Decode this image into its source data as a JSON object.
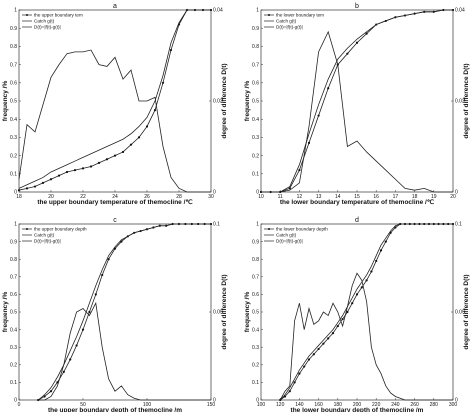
{
  "chart_data": [
    {
      "panel": "a",
      "type": "line",
      "xlabel": "the upper boundary temperature of themocline /℃",
      "ylabel": "frequency /%",
      "y2label": "degree of difference D(t)",
      "xlim": [
        18,
        30
      ],
      "ylim": [
        0,
        1
      ],
      "y2lim": [
        0,
        0.04
      ],
      "xticks": [
        18,
        20,
        22,
        24,
        26,
        28,
        30
      ],
      "yticks": [
        0,
        0.1,
        0.2,
        0.3,
        0.4,
        0.5,
        0.6,
        0.7,
        0.8,
        0.9,
        1
      ],
      "y2ticks": [
        {
          "v": 0,
          "label": "0"
        },
        {
          "v": 0.02,
          "label": "0.02"
        },
        {
          "v": 0.04,
          "label": "0.04"
        }
      ],
      "legend": [
        "the upper boundary tem",
        "Catch g(t)",
        "D(t)=|f(t)-g(t)|"
      ],
      "series": [
        {
          "name": "the upper boundary tem",
          "marker": "dot",
          "x": [
            18,
            18.5,
            19,
            19.5,
            20,
            20.5,
            21,
            21.5,
            22,
            22.5,
            23,
            23.5,
            24,
            24.5,
            25,
            25.5,
            26,
            26.5,
            27,
            27.5,
            28,
            28.5,
            29,
            29.5,
            30
          ],
          "y": [
            0.01,
            0.02,
            0.03,
            0.05,
            0.07,
            0.09,
            0.11,
            0.12,
            0.13,
            0.14,
            0.16,
            0.18,
            0.2,
            0.22,
            0.26,
            0.3,
            0.36,
            0.45,
            0.6,
            0.78,
            0.92,
            1,
            1,
            1,
            1
          ]
        },
        {
          "name": "Catch g(t)",
          "x": [
            18,
            18.5,
            19,
            19.5,
            20,
            20.5,
            21,
            21.5,
            22,
            22.5,
            23,
            23.5,
            24,
            24.5,
            25,
            25.5,
            26,
            26.5,
            27,
            27.5,
            28,
            28.5,
            29,
            29.5,
            30
          ],
          "y": [
            0.02,
            0.04,
            0.06,
            0.08,
            0.11,
            0.13,
            0.15,
            0.17,
            0.19,
            0.21,
            0.23,
            0.25,
            0.27,
            0.29,
            0.32,
            0.36,
            0.41,
            0.5,
            0.64,
            0.82,
            0.93,
            1,
            1,
            1,
            1
          ]
        },
        {
          "name": "D(t)=|f(t)-g(t)|",
          "x": [
            18,
            18.5,
            19,
            19.5,
            20,
            20.5,
            21,
            21.5,
            22,
            22.5,
            23,
            23.5,
            24,
            24.5,
            25,
            25.5,
            26,
            26.5,
            27,
            27.5,
            28,
            28.5,
            29,
            29.5,
            30
          ],
          "y": [
            0.07,
            0.37,
            0.33,
            0.48,
            0.63,
            0.7,
            0.76,
            0.77,
            0.77,
            0.78,
            0.7,
            0.69,
            0.74,
            0.62,
            0.67,
            0.5,
            0.5,
            0.52,
            0.25,
            0.08,
            0.02,
            0,
            0,
            0,
            0
          ]
        }
      ]
    },
    {
      "panel": "b",
      "type": "line",
      "xlabel": "the lower boundary temperature of themocline /℃",
      "ylabel": "frequency /%",
      "y2label": "degree of difference D(t)",
      "xlim": [
        10,
        20
      ],
      "ylim": [
        0,
        1
      ],
      "y2lim": [
        0,
        0.04
      ],
      "xticks": [
        10,
        11,
        12,
        13,
        14,
        15,
        16,
        17,
        18,
        19,
        20
      ],
      "yticks": [
        0,
        0.1,
        0.2,
        0.3,
        0.4,
        0.5,
        0.6,
        0.7,
        0.8,
        0.9,
        1
      ],
      "y2ticks": [
        {
          "v": 0,
          "label": "0"
        },
        {
          "v": 0.02,
          "label": "0.02"
        },
        {
          "v": 0.04,
          "label": "0.04"
        }
      ],
      "legend": [
        "the lower boundary tem",
        "Catch g(t)",
        "D(t)=|f(t)-g(t)|"
      ],
      "series": [
        {
          "name": "the lower boundary tem",
          "marker": "dot",
          "x": [
            10,
            10.5,
            11,
            11.5,
            12,
            12.5,
            13,
            13.5,
            14,
            14.5,
            15,
            15.5,
            16,
            16.5,
            17,
            17.5,
            18,
            18.5,
            19,
            19.5,
            20
          ],
          "y": [
            0,
            0,
            0,
            0.02,
            0.12,
            0.27,
            0.42,
            0.57,
            0.7,
            0.76,
            0.82,
            0.87,
            0.92,
            0.94,
            0.96,
            0.97,
            0.98,
            0.99,
            0.99,
            1,
            1
          ]
        },
        {
          "name": "Catch g(t)",
          "x": [
            10,
            10.5,
            11,
            11.5,
            12,
            12.5,
            13,
            13.5,
            14,
            14.5,
            15,
            15.5,
            16,
            16.5,
            17,
            17.5,
            18,
            18.5,
            19,
            19.5,
            20
          ],
          "y": [
            0,
            0,
            0,
            0.03,
            0.15,
            0.32,
            0.48,
            0.62,
            0.73,
            0.79,
            0.84,
            0.88,
            0.92,
            0.94,
            0.96,
            0.97,
            0.98,
            0.99,
            0.99,
            1,
            1
          ]
        },
        {
          "name": "D(t)=|f(t)-g(t)|",
          "x": [
            10,
            10.5,
            11,
            11.5,
            12,
            12.5,
            13,
            13.5,
            14,
            14.5,
            15,
            15.5,
            16,
            16.5,
            17,
            17.5,
            18,
            18.5,
            19,
            19.5,
            20
          ],
          "y": [
            0,
            0,
            0,
            0.01,
            0.05,
            0.36,
            0.77,
            0.88,
            0.7,
            0.25,
            0.28,
            0.22,
            0.17,
            0.12,
            0.07,
            0.02,
            0.01,
            0.02,
            0,
            0,
            0
          ]
        }
      ]
    },
    {
      "panel": "c",
      "type": "line",
      "xlabel": "the upper boundary depth of themocline /m",
      "ylabel": "frequency /%",
      "y2label": "degree of difference D(t)",
      "xlim": [
        0,
        150
      ],
      "ylim": [
        0,
        1
      ],
      "y2lim": [
        0,
        0.1
      ],
      "xticks": [
        0,
        50,
        100,
        150
      ],
      "yticks": [
        0,
        0.1,
        0.2,
        0.3,
        0.4,
        0.5,
        0.6,
        0.7,
        0.8,
        0.9,
        1
      ],
      "y2ticks": [
        {
          "v": 0,
          "label": "0"
        },
        {
          "v": 0.05,
          "label": "0.05"
        },
        {
          "v": 0.1,
          "label": "0.1"
        }
      ],
      "legend": [
        "the upper boundary depth",
        "Catch g(t)",
        "D(t)=|f(t)-g(t)|"
      ],
      "series": [
        {
          "name": "the upper boundary depth",
          "marker": "dot",
          "x": [
            15,
            20,
            25,
            30,
            35,
            40,
            45,
            50,
            55,
            60,
            65,
            70,
            75,
            80,
            85,
            90,
            95,
            100,
            105,
            110,
            115,
            120,
            125,
            130,
            135,
            140,
            145,
            150
          ],
          "y": [
            0,
            0.02,
            0.05,
            0.1,
            0.16,
            0.23,
            0.31,
            0.4,
            0.5,
            0.6,
            0.71,
            0.8,
            0.86,
            0.9,
            0.93,
            0.95,
            0.96,
            0.97,
            0.98,
            0.99,
            0.99,
            1,
            1,
            1,
            1,
            1,
            1,
            1
          ]
        },
        {
          "name": "Catch g(t)",
          "x": [
            15,
            20,
            25,
            30,
            35,
            40,
            45,
            50,
            55,
            60,
            65,
            70,
            75,
            80,
            85,
            90,
            95,
            100,
            105,
            110,
            115,
            120,
            125,
            130,
            135,
            140,
            145,
            150
          ],
          "y": [
            0,
            0.03,
            0.07,
            0.13,
            0.2,
            0.28,
            0.36,
            0.45,
            0.55,
            0.65,
            0.74,
            0.82,
            0.87,
            0.91,
            0.93,
            0.95,
            0.96,
            0.97,
            0.98,
            0.99,
            0.99,
            1,
            1,
            1,
            1,
            1,
            1,
            1
          ]
        },
        {
          "name": "D(t)=|f(t)-g(t)|",
          "x": [
            15,
            20,
            25,
            30,
            35,
            40,
            45,
            50,
            55,
            60,
            65,
            70,
            75,
            80,
            85,
            90,
            95,
            100,
            105,
            110,
            115,
            120,
            125,
            130,
            135,
            140,
            145,
            150
          ],
          "y": [
            0,
            0,
            0.02,
            0.08,
            0.2,
            0.38,
            0.5,
            0.52,
            0.48,
            0.55,
            0.3,
            0.12,
            0.05,
            0.08,
            0.03,
            0.01,
            0,
            0,
            0,
            0,
            0,
            0,
            0,
            0,
            0,
            0,
            0,
            0
          ]
        }
      ]
    },
    {
      "panel": "d",
      "type": "line",
      "xlabel": "the lower boundary depth of themocline /m",
      "ylabel": "frequency /%",
      "y2label": "degree of difference D(t)",
      "xlim": [
        100,
        300
      ],
      "ylim": [
        0,
        1
      ],
      "y2lim": [
        0,
        0.1
      ],
      "xticks": [
        100,
        120,
        140,
        160,
        180,
        200,
        220,
        240,
        260,
        280,
        300
      ],
      "yticks": [
        0,
        0.1,
        0.2,
        0.3,
        0.4,
        0.5,
        0.6,
        0.7,
        0.8,
        0.9,
        1
      ],
      "y2ticks": [
        {
          "v": 0,
          "label": "0"
        },
        {
          "v": 0.05,
          "label": "0.05"
        },
        {
          "v": 0.1,
          "label": "0.1"
        }
      ],
      "legend": [
        "the lower boundary depth",
        "Catch g(t)",
        "D(t)=|f(t)-g(t)|"
      ],
      "series": [
        {
          "name": "the lower boundary depth",
          "marker": "dot",
          "x": [
            120,
            125,
            130,
            135,
            140,
            145,
            150,
            155,
            160,
            165,
            170,
            175,
            180,
            185,
            190,
            195,
            200,
            205,
            210,
            215,
            220,
            225,
            230,
            235,
            240,
            245,
            250,
            255,
            260,
            265,
            270,
            275,
            280,
            285,
            290,
            295,
            300
          ],
          "y": [
            0,
            0.02,
            0.05,
            0.1,
            0.15,
            0.19,
            0.23,
            0.26,
            0.29,
            0.32,
            0.35,
            0.38,
            0.42,
            0.46,
            0.5,
            0.55,
            0.6,
            0.64,
            0.68,
            0.73,
            0.79,
            0.85,
            0.9,
            0.95,
            0.98,
            1,
            1,
            1,
            1,
            1,
            1,
            1,
            1,
            1,
            1,
            1,
            1
          ]
        },
        {
          "name": "Catch g(t)",
          "x": [
            120,
            125,
            130,
            135,
            140,
            145,
            150,
            155,
            160,
            165,
            170,
            175,
            180,
            185,
            190,
            195,
            200,
            205,
            210,
            215,
            220,
            225,
            230,
            235,
            240,
            245,
            250,
            255,
            260,
            265,
            270,
            275,
            280,
            285,
            290,
            295,
            300
          ],
          "y": [
            0,
            0.03,
            0.07,
            0.12,
            0.17,
            0.21,
            0.25,
            0.28,
            0.31,
            0.34,
            0.37,
            0.4,
            0.44,
            0.48,
            0.53,
            0.58,
            0.63,
            0.67,
            0.71,
            0.76,
            0.82,
            0.88,
            0.92,
            0.96,
            0.99,
            1,
            1,
            1,
            1,
            1,
            1,
            1,
            1,
            1,
            1,
            1,
            1
          ]
        },
        {
          "name": "D(t)=|f(t)-g(t)|",
          "x": [
            120,
            125,
            130,
            135,
            140,
            145,
            150,
            155,
            160,
            165,
            170,
            175,
            180,
            185,
            190,
            195,
            200,
            205,
            210,
            215,
            220,
            225,
            230,
            235,
            240,
            245,
            250,
            255,
            260,
            265,
            270,
            275,
            280,
            285,
            290,
            295,
            300
          ],
          "y": [
            0,
            0.05,
            0.08,
            0.45,
            0.55,
            0.4,
            0.52,
            0.43,
            0.45,
            0.5,
            0.48,
            0.55,
            0.5,
            0.42,
            0.53,
            0.65,
            0.72,
            0.68,
            0.56,
            0.3,
            0.2,
            0.15,
            0.08,
            0.04,
            0.02,
            0.01,
            0,
            0,
            0,
            0,
            0,
            0,
            0,
            0,
            0,
            0,
            0
          ]
        }
      ]
    }
  ]
}
